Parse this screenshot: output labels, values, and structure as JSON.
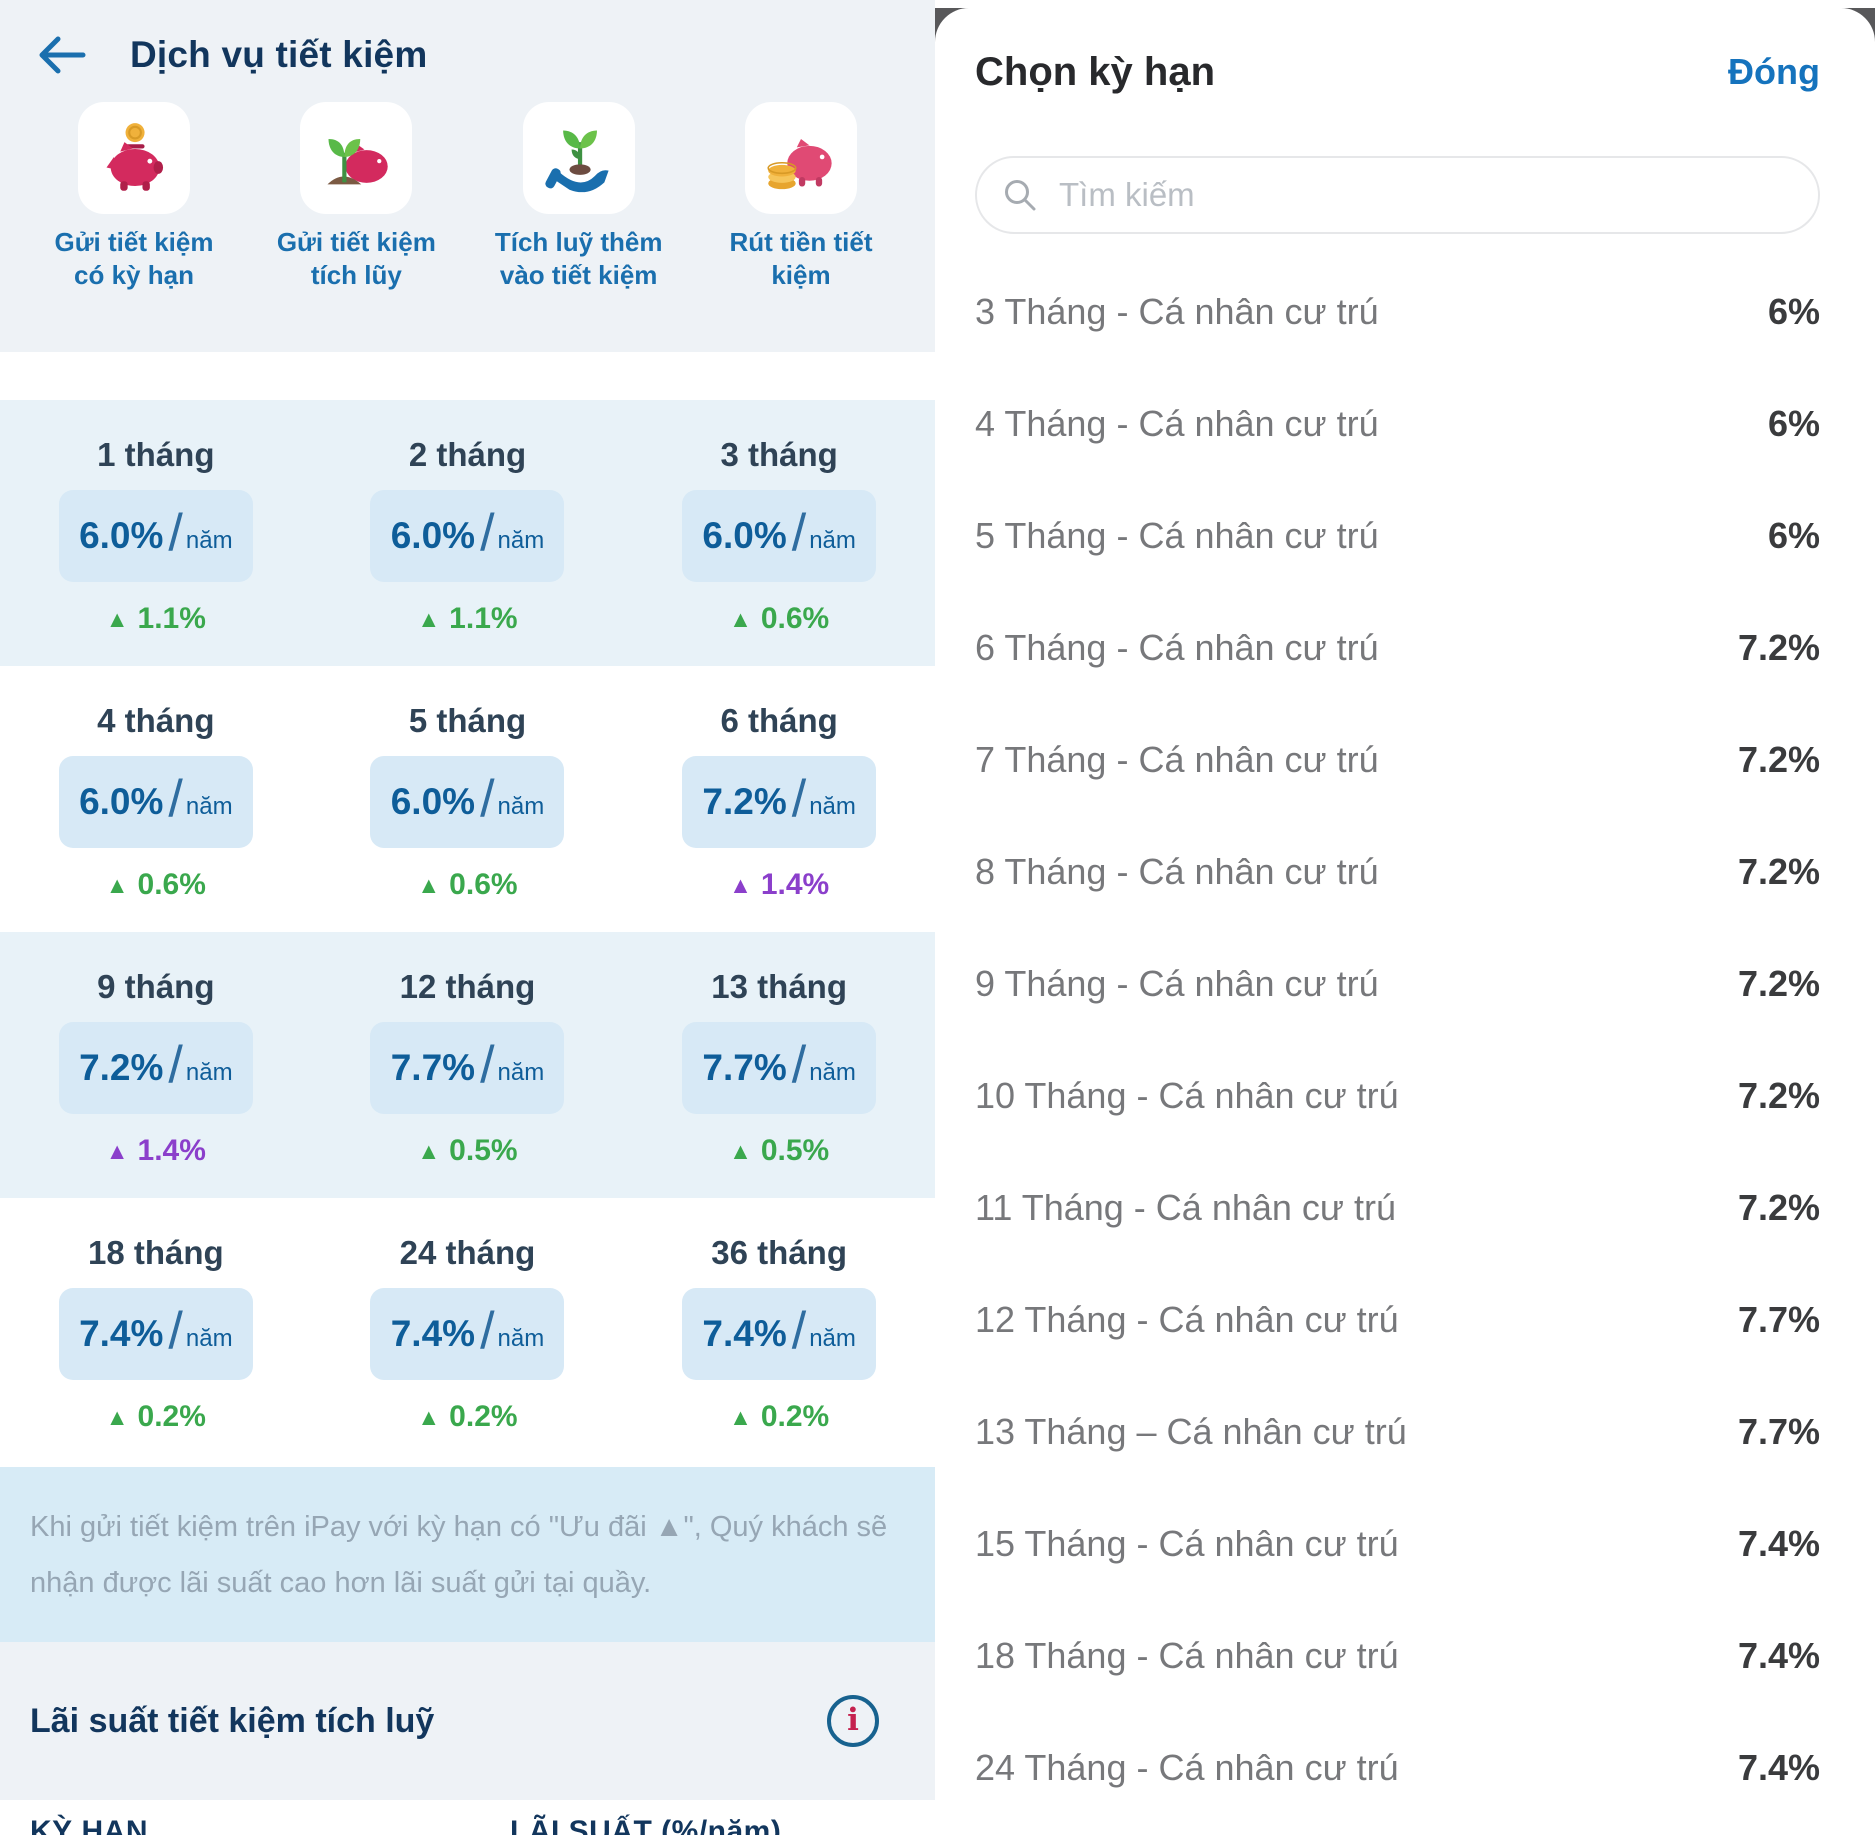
{
  "left_panel": {
    "title": "Dịch vụ tiết kiệm",
    "services": [
      {
        "icon": "piggy-bank-coin-icon",
        "label": "Gửi tiết kiệm\ncó kỳ hạn"
      },
      {
        "icon": "piggy-bank-sprout-icon",
        "label": "Gửi tiết kiệm\ntích lũy"
      },
      {
        "icon": "hand-plant-icon",
        "label": "Tích luỹ thêm\nvào tiết kiệm"
      },
      {
        "icon": "piggy-bank-coins-icon",
        "label": "Rút tiền tiết\nkiệm"
      }
    ],
    "rate_unit": "năm",
    "rate_separator": "/",
    "delta_symbol": "▲",
    "rate_rows": [
      [
        {
          "term": "1 tháng",
          "rate": "6.0%",
          "delta": "1.1%",
          "delta_color": "green"
        },
        {
          "term": "2 tháng",
          "rate": "6.0%",
          "delta": "1.1%",
          "delta_color": "green"
        },
        {
          "term": "3 tháng",
          "rate": "6.0%",
          "delta": "0.6%",
          "delta_color": "green"
        }
      ],
      [
        {
          "term": "4 tháng",
          "rate": "6.0%",
          "delta": "0.6%",
          "delta_color": "green"
        },
        {
          "term": "5 tháng",
          "rate": "6.0%",
          "delta": "0.6%",
          "delta_color": "green"
        },
        {
          "term": "6 tháng",
          "rate": "7.2%",
          "delta": "1.4%",
          "delta_color": "purple"
        }
      ],
      [
        {
          "term": "9 tháng",
          "rate": "7.2%",
          "delta": "1.4%",
          "delta_color": "purple"
        },
        {
          "term": "12 tháng",
          "rate": "7.7%",
          "delta": "0.5%",
          "delta_color": "green"
        },
        {
          "term": "13 tháng",
          "rate": "7.7%",
          "delta": "0.5%",
          "delta_color": "green"
        }
      ],
      [
        {
          "term": "18 tháng",
          "rate": "7.4%",
          "delta": "0.2%",
          "delta_color": "green"
        },
        {
          "term": "24 tháng",
          "rate": "7.4%",
          "delta": "0.2%",
          "delta_color": "green"
        },
        {
          "term": "36 tháng",
          "rate": "7.4%",
          "delta": "0.2%",
          "delta_color": "green"
        }
      ]
    ],
    "note": "Khi gửi tiết kiệm trên iPay với kỳ hạn có \"Ưu đãi ▲\", Quý khách sẽ nhận được lãi suất cao hơn lãi suất gửi tại quầy.",
    "accumulated_title": "Lãi suất tiết kiệm tích luỹ",
    "info_icon_glyph": "i",
    "table_headers": {
      "term": "KỲ HẠN",
      "rate": "LÃI SUẤT (%/năm)"
    }
  },
  "modal": {
    "title": "Chọn kỳ hạn",
    "close_label": "Đóng",
    "search_placeholder": "Tìm kiếm",
    "options": [
      {
        "label": "3 Tháng - Cá nhân cư trú",
        "rate": "6%"
      },
      {
        "label": "4 Tháng - Cá nhân cư trú",
        "rate": "6%"
      },
      {
        "label": "5 Tháng - Cá nhân cư trú",
        "rate": "6%"
      },
      {
        "label": "6 Tháng - Cá nhân cư trú",
        "rate": "7.2%"
      },
      {
        "label": "7 Tháng - Cá nhân cư trú",
        "rate": "7.2%"
      },
      {
        "label": "8 Tháng - Cá nhân cư trú",
        "rate": "7.2%"
      },
      {
        "label": "9 Tháng - Cá nhân cư trú",
        "rate": "7.2%"
      },
      {
        "label": "10 Tháng - Cá nhân cư trú",
        "rate": "7.2%"
      },
      {
        "label": "11 Tháng - Cá nhân cư trú",
        "rate": "7.2%"
      },
      {
        "label": "12 Tháng - Cá nhân cư trú",
        "rate": "7.7%"
      },
      {
        "label": "13 Tháng – Cá nhân cư trú",
        "rate": "7.7%"
      },
      {
        "label": "15 Tháng - Cá nhân cư trú",
        "rate": "7.4%"
      },
      {
        "label": "18 Tháng - Cá nhân cư trú",
        "rate": "7.4%"
      },
      {
        "label": "24 Tháng - Cá nhân cư trú",
        "rate": "7.4%"
      }
    ]
  },
  "colors": {
    "brand_navy": "#12365d",
    "link_blue": "#1a6fae",
    "rate_blue": "#0e5d99",
    "delta_green": "#3aa84d",
    "delta_purple": "#8b3fcb",
    "close_blue": "#1573bd",
    "info_red": "#c5224f",
    "chip_bg": "#d7e9f6",
    "row_shade_bg": "#e8f2f8",
    "note_bg": "#d7ebf6",
    "section_bg": "#eef2f6"
  }
}
